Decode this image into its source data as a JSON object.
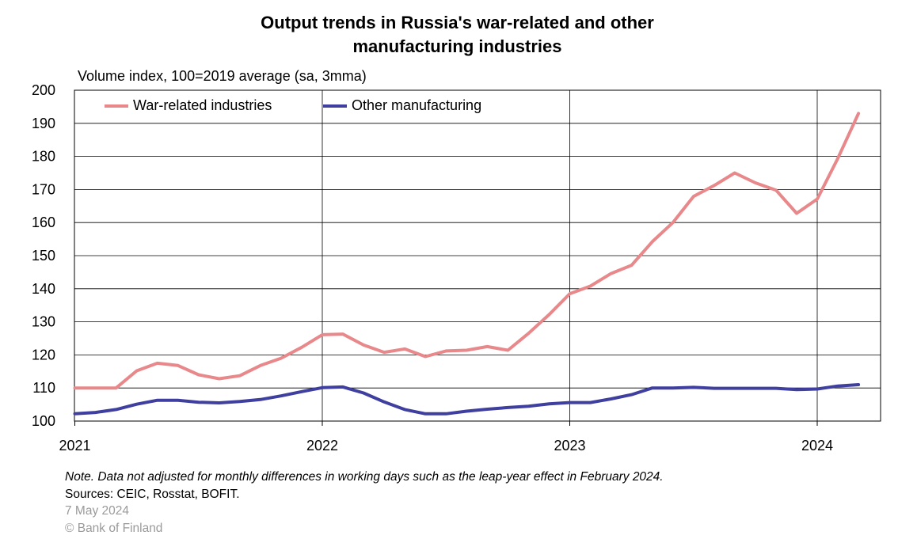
{
  "chart_data": {
    "type": "line",
    "title": "Output trends in Russia's war-related and other manufacturing industries",
    "subtitle": "Volume index, 100=2019 average (sa, 3mma)",
    "ylim": [
      100,
      200
    ],
    "yticks": [
      100,
      110,
      120,
      130,
      140,
      150,
      160,
      170,
      180,
      190,
      200
    ],
    "xticks": [
      "2021",
      "2022",
      "2023",
      "2024"
    ],
    "grid": true,
    "legend_position": "top-left",
    "x": [
      "2021-01",
      "2021-02",
      "2021-03",
      "2021-04",
      "2021-05",
      "2021-06",
      "2021-07",
      "2021-08",
      "2021-09",
      "2021-10",
      "2021-11",
      "2021-12",
      "2022-01",
      "2022-02",
      "2022-03",
      "2022-04",
      "2022-05",
      "2022-06",
      "2022-07",
      "2022-08",
      "2022-09",
      "2022-10",
      "2022-11",
      "2022-12",
      "2023-01",
      "2023-02",
      "2023-03",
      "2023-04",
      "2023-05",
      "2023-06",
      "2023-07",
      "2023-08",
      "2023-09",
      "2023-10",
      "2023-11",
      "2023-12",
      "2024-01",
      "2024-02",
      "2024-03"
    ],
    "series": [
      {
        "name": "War-related industries",
        "color": "#e8888a",
        "values": [
          110,
          110,
          110,
          115.2,
          117.5,
          116.8,
          114,
          112.8,
          113.7,
          116.8,
          119,
          122.3,
          126.1,
          126.3,
          123,
          120.8,
          121.8,
          119.5,
          121.2,
          121.4,
          122.5,
          121.4,
          126.5,
          132.2,
          138.5,
          140.8,
          144.6,
          147.1,
          154.2,
          160,
          167.9,
          171.2,
          175,
          172,
          169.8,
          162.8,
          167.1,
          179.4,
          193
        ]
      },
      {
        "name": "Other manufacturing",
        "color": "#3f3fa0",
        "values": [
          102.2,
          102.6,
          103.5,
          105.1,
          106.3,
          106.3,
          105.7,
          105.5,
          105.9,
          106.5,
          107.6,
          108.9,
          110.1,
          110.3,
          108.5,
          105.8,
          103.5,
          102.2,
          102.2,
          103,
          103.6,
          104.1,
          104.5,
          105.2,
          105.6,
          105.6,
          106.7,
          108,
          110,
          110,
          110.2,
          109.9,
          109.9,
          109.9,
          109.9,
          109.5,
          109.7,
          110.6,
          111
        ]
      }
    ]
  },
  "footer": {
    "note": "Note. Data not adjusted for monthly differences in working days such as the leap-year effect in February 2024.",
    "sources": "Sources: CEIC, Rosstat, BOFIT.",
    "date": "7 May 2024",
    "copyright": "© Bank of Finland"
  }
}
